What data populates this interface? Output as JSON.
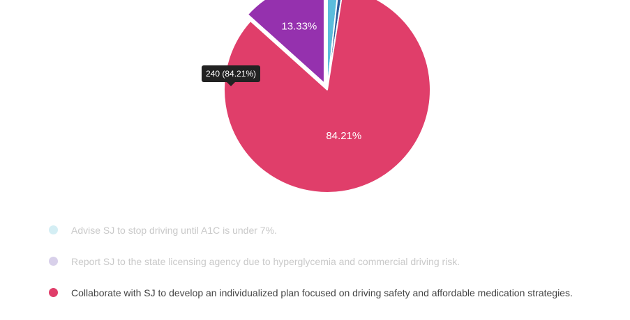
{
  "chart_data": {
    "type": "pie",
    "slices": [
      {
        "label": "Advise SJ to stop driving until A1C is under 7%.",
        "percent": 1.75,
        "color": "#5bbcdc",
        "legend_dot_color": "#d4eef4",
        "active": false,
        "exploded": false
      },
      {
        "label": "Report SJ to the state licensing agency due to hyperglycemia and commercial driving risk.",
        "percent": 0.71,
        "color": "#2e5b9a",
        "legend_dot_color": "#d8d0ea",
        "active": false,
        "exploded": false
      },
      {
        "label": "Collaborate with SJ to develop an individualized plan focused on driving safety and affordable medication strategies.",
        "percent": 84.21,
        "color": "#e03e6a",
        "legend_dot_color": "#e03e6a",
        "active": true,
        "exploded": false
      },
      {
        "label": "",
        "percent": 13.33,
        "color": "#9531ae",
        "legend_dot_color": "#9531ae",
        "active": false,
        "exploded": true
      }
    ],
    "data_labels": {
      "s2": "84.21%",
      "s3": "13.33%"
    },
    "tooltip": {
      "text": "240 (84.21%)"
    },
    "legend_placement": "bottom"
  }
}
